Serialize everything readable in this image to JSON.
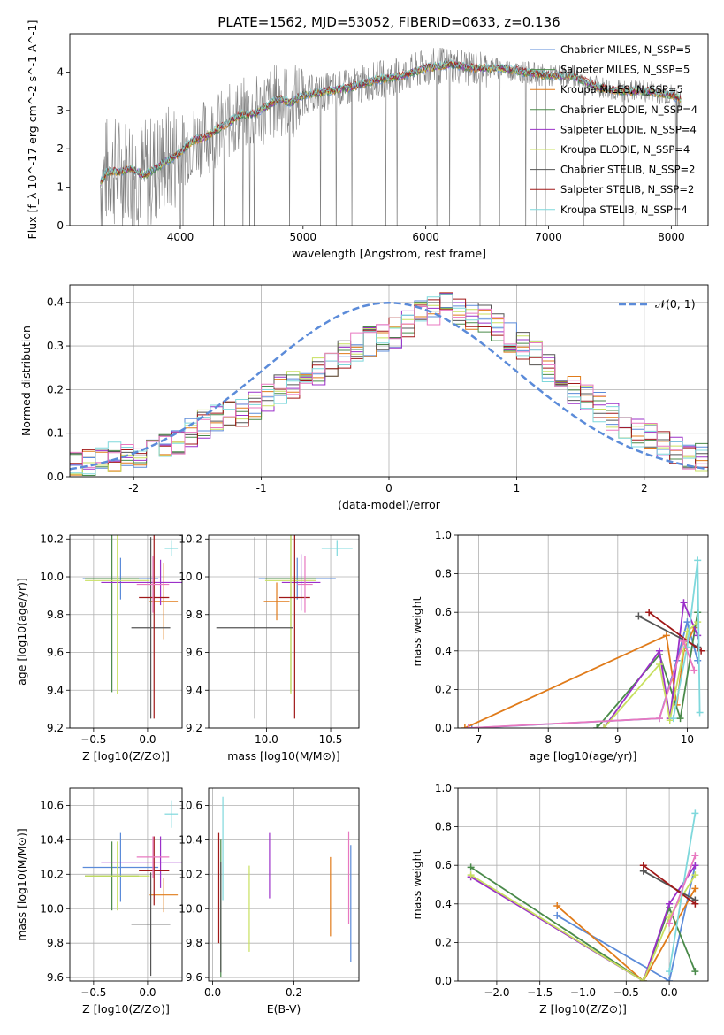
{
  "title": "PLATE=1562, MJD=53052, FIBERID=0633, z=0.136",
  "colors": {
    "gray": "#808080",
    "blue": "#5b8bd9",
    "orange": "#e07b1a",
    "green": "#4a8a4a",
    "purple": "#9b30c9",
    "lime": "#c8e060",
    "dark": "#555555",
    "red": "#a01818",
    "cyan": "#7fd8dc",
    "pink": "#e878c0"
  },
  "chart_data": [
    {
      "type": "line",
      "id": "spectrum",
      "xlabel": "wavelength [Angstrom, rest frame]",
      "ylabel": "Flux [f_λ 10^-17 erg cm^-2 s^-1 A^-1]",
      "xlim": [
        3100,
        8300
      ],
      "ylim": [
        0,
        5
      ],
      "xticks": [
        4000,
        5000,
        6000,
        7000,
        8000
      ],
      "yticks": [
        0,
        1,
        2,
        3,
        4
      ],
      "legend": [
        {
          "label": "Chabrier MILES, N_SSP=5",
          "color": "#5b8bd9"
        },
        {
          "label": "Salpeter MILES, N_SSP=5",
          "color": "#4a8a4a"
        },
        {
          "label": "Kroupa MILES, N_SSP=5",
          "color": "#e07b1a"
        },
        {
          "label": "Chabrier ELODIE, N_SSP=4",
          "color": "#4a8a4a"
        },
        {
          "label": "Salpeter ELODIE, N_SSP=4",
          "color": "#9b30c9"
        },
        {
          "label": "Kroupa ELODIE, N_SSP=4",
          "color": "#c8e060"
        },
        {
          "label": "Chabrier STELIB, N_SSP=2",
          "color": "#555555"
        },
        {
          "label": "Salpeter STELIB, N_SSP=2",
          "color": "#a01818"
        },
        {
          "label": "Kroupa STELIB, N_SSP=4",
          "color": "#7fd8dc"
        }
      ],
      "model_curve": {
        "x": [
          3350,
          3400,
          3500,
          3600,
          3700,
          3800,
          3900,
          4000,
          4100,
          4200,
          4300,
          4400,
          4500,
          4600,
          4700,
          4800,
          4900,
          5000,
          5200,
          5400,
          5600,
          5800,
          6000,
          6200,
          6400,
          6600,
          6800,
          7000,
          7200,
          7400,
          7600,
          7800,
          8000,
          8080
        ],
        "y": [
          1.1,
          1.4,
          1.4,
          1.5,
          1.3,
          1.5,
          1.7,
          1.9,
          2.2,
          2.3,
          2.5,
          2.7,
          2.9,
          2.9,
          3.1,
          3.3,
          3.2,
          3.4,
          3.5,
          3.6,
          3.8,
          3.9,
          4.1,
          4.2,
          4.1,
          4.1,
          4.0,
          3.9,
          3.9,
          3.6,
          3.5,
          3.5,
          3.4,
          3.3
        ]
      }
    },
    {
      "type": "histogram",
      "id": "residuals",
      "xlabel": "(data-model)/error",
      "ylabel": "Normed distribution",
      "xlim": [
        -2.5,
        2.5
      ],
      "ylim": [
        0,
        0.44
      ],
      "xticks": [
        -2,
        -1,
        0,
        1,
        2
      ],
      "yticks": [
        0.0,
        0.1,
        0.2,
        0.3,
        0.4
      ],
      "legend_label": "𝒩(0, 1)",
      "bin_width": 0.1,
      "bins_start": -2.5,
      "heights": [
        0.03,
        0.035,
        0.04,
        0.045,
        0.05,
        0.055,
        0.065,
        0.07,
        0.08,
        0.1,
        0.12,
        0.13,
        0.14,
        0.15,
        0.16,
        0.18,
        0.2,
        0.21,
        0.22,
        0.24,
        0.26,
        0.28,
        0.3,
        0.31,
        0.32,
        0.33,
        0.35,
        0.37,
        0.38,
        0.39,
        0.38,
        0.37,
        0.36,
        0.34,
        0.32,
        0.3,
        0.28,
        0.25,
        0.23,
        0.2,
        0.18,
        0.16,
        0.14,
        0.12,
        0.1,
        0.09,
        0.08,
        0.065,
        0.05,
        0.045
      ]
    },
    {
      "type": "scatter",
      "id": "age-vs-Z",
      "xlabel": "Z [log10(Z/Z⊙)]",
      "ylabel": "age [log10(age/yr)]",
      "xlim": [
        -0.72,
        0.32
      ],
      "ylim": [
        9.2,
        10.22
      ],
      "xticks": [
        -0.5,
        0.0
      ],
      "yticks": [
        9.2,
        9.4,
        9.6,
        9.8,
        10.0,
        10.2
      ],
      "points": [
        {
          "x": -0.25,
          "y": 9.99,
          "xerr": 0.35,
          "yerr": 0.11,
          "color": "#5b8bd9"
        },
        {
          "x": 0.15,
          "y": 9.87,
          "xerr": 0.13,
          "yerr": 0.2,
          "color": "#e07b1a"
        },
        {
          "x": -0.33,
          "y": 9.99,
          "xerr": 0.25,
          "yerr": 0.6,
          "color": "#4a8a4a"
        },
        {
          "x": 0.12,
          "y": 9.97,
          "xerr": 0.55,
          "yerr": 0.12,
          "color": "#9b30c9"
        },
        {
          "x": -0.28,
          "y": 9.98,
          "xerr": 0.3,
          "yerr": 0.6,
          "color": "#c8e060"
        },
        {
          "x": 0.03,
          "y": 9.73,
          "xerr": 0.18,
          "yerr": 0.48,
          "color": "#555555"
        },
        {
          "x": 0.06,
          "y": 9.89,
          "xerr": 0.14,
          "yerr": 0.64,
          "color": "#a01818"
        },
        {
          "x": 0.22,
          "y": 10.15,
          "xerr": 0.06,
          "yerr": 0.04,
          "color": "#7fd8dc"
        },
        {
          "x": 0.05,
          "y": 9.96,
          "xerr": 0.15,
          "yerr": 0.15,
          "color": "#e878c0"
        }
      ]
    },
    {
      "type": "scatter",
      "id": "age-vs-mass",
      "xlabel": "mass [log10(M/M⊙)]",
      "ylabel": "",
      "xlim": [
        9.55,
        10.72
      ],
      "ylim": [
        9.2,
        10.22
      ],
      "xticks": [
        10.0,
        10.5
      ],
      "yticks": [
        9.2,
        9.4,
        9.6,
        9.8,
        10.0,
        10.2
      ],
      "points": [
        {
          "x": 10.24,
          "y": 9.99,
          "xerr": 0.3,
          "yerr": 0.11,
          "color": "#5b8bd9"
        },
        {
          "x": 10.08,
          "y": 9.87,
          "xerr": 0.1,
          "yerr": 0.1,
          "color": "#e07b1a"
        },
        {
          "x": 10.19,
          "y": 9.99,
          "xerr": 0.2,
          "yerr": 0.6,
          "color": "#4a8a4a"
        },
        {
          "x": 10.27,
          "y": 9.97,
          "xerr": 0.15,
          "yerr": 0.15,
          "color": "#9b30c9"
        },
        {
          "x": 10.19,
          "y": 9.98,
          "xerr": 0.2,
          "yerr": 0.6,
          "color": "#c8e060"
        },
        {
          "x": 9.91,
          "y": 9.73,
          "xerr": 0.3,
          "yerr": 0.48,
          "color": "#555555"
        },
        {
          "x": 10.22,
          "y": 9.89,
          "xerr": 0.12,
          "yerr": 0.64,
          "color": "#a01818"
        },
        {
          "x": 10.55,
          "y": 10.15,
          "xerr": 0.12,
          "yerr": 0.04,
          "color": "#7fd8dc"
        },
        {
          "x": 10.3,
          "y": 9.96,
          "xerr": 0.06,
          "yerr": 0.15,
          "color": "#e878c0"
        }
      ]
    },
    {
      "type": "line",
      "id": "massweight-vs-age",
      "xlabel": "age [log10(age/yr)]",
      "ylabel": "mass weight",
      "xlim": [
        6.7,
        10.3
      ],
      "ylim": [
        0,
        1
      ],
      "xticks": [
        7,
        8,
        9,
        10
      ],
      "yticks": [
        0.0,
        0.2,
        0.4,
        0.6,
        0.8,
        1.0
      ],
      "series": [
        {
          "color": "#5b8bd9",
          "x": [
            6.9,
            9.6,
            9.85,
            10.0,
            10.15
          ],
          "y": [
            0.0,
            0.05,
            0.35,
            0.55,
            0.35
          ]
        },
        {
          "color": "#e07b1a",
          "x": [
            6.8,
            9.7,
            9.85,
            9.95,
            10.1
          ],
          "y": [
            0.0,
            0.48,
            0.12,
            0.4,
            0.52
          ]
        },
        {
          "color": "#4a8a4a",
          "x": [
            8.7,
            9.6,
            9.9,
            10.15
          ],
          "y": [
            0.0,
            0.38,
            0.05,
            0.6
          ]
        },
        {
          "color": "#9b30c9",
          "x": [
            8.8,
            9.6,
            9.75,
            9.95,
            10.15
          ],
          "y": [
            0.0,
            0.4,
            0.05,
            0.65,
            0.48
          ]
        },
        {
          "color": "#c8e060",
          "x": [
            8.8,
            9.6,
            9.75,
            10.0,
            10.15
          ],
          "y": [
            0.0,
            0.33,
            0.04,
            0.5,
            0.55
          ]
        },
        {
          "color": "#555555",
          "x": [
            9.3,
            10.15
          ],
          "y": [
            0.58,
            0.42
          ]
        },
        {
          "color": "#a01818",
          "x": [
            9.45,
            10.2
          ],
          "y": [
            0.6,
            0.4
          ]
        },
        {
          "color": "#7fd8dc",
          "x": [
            9.8,
            10.0,
            10.15,
            10.18
          ],
          "y": [
            0.05,
            0.42,
            0.87,
            0.08
          ]
        },
        {
          "color": "#e878c0",
          "x": [
            6.85,
            9.6,
            9.95,
            10.1
          ],
          "y": [
            0.0,
            0.05,
            0.45,
            0.3
          ]
        }
      ]
    },
    {
      "type": "scatter",
      "id": "mass-vs-Z",
      "xlabel": "Z [log10(Z/Z⊙)]",
      "ylabel": "mass [log10(M/M⊙)]",
      "xlim": [
        -0.72,
        0.32
      ],
      "ylim": [
        9.58,
        10.7
      ],
      "xticks": [
        -0.5,
        0.0
      ],
      "yticks": [
        9.6,
        9.8,
        10.0,
        10.2,
        10.4,
        10.6
      ],
      "points": [
        {
          "x": -0.25,
          "y": 10.24,
          "xerr": 0.35,
          "yerr": 0.2,
          "color": "#5b8bd9"
        },
        {
          "x": 0.15,
          "y": 10.08,
          "xerr": 0.13,
          "yerr": 0.1,
          "color": "#e07b1a"
        },
        {
          "x": -0.33,
          "y": 10.19,
          "xerr": 0.25,
          "yerr": 0.2,
          "color": "#4a8a4a"
        },
        {
          "x": 0.12,
          "y": 10.27,
          "xerr": 0.55,
          "yerr": 0.15,
          "color": "#9b30c9"
        },
        {
          "x": -0.28,
          "y": 10.19,
          "xerr": 0.3,
          "yerr": 0.2,
          "color": "#c8e060"
        },
        {
          "x": 0.03,
          "y": 9.91,
          "xerr": 0.18,
          "yerr": 0.3,
          "color": "#555555"
        },
        {
          "x": 0.06,
          "y": 10.22,
          "xerr": 0.14,
          "yerr": 0.2,
          "color": "#a01818"
        },
        {
          "x": 0.22,
          "y": 10.55,
          "xerr": 0.06,
          "yerr": 0.08,
          "color": "#7fd8dc"
        },
        {
          "x": 0.05,
          "y": 10.3,
          "xerr": 0.15,
          "yerr": 0.12,
          "color": "#e878c0"
        }
      ]
    },
    {
      "type": "scatter",
      "id": "mass-vs-EBV",
      "xlabel": "E(B-V)",
      "ylabel": "",
      "xlim": [
        -0.01,
        0.36
      ],
      "ylim": [
        9.58,
        10.7
      ],
      "xticks": [
        0.0,
        0.2
      ],
      "yticks": [
        9.6,
        9.8,
        10.0,
        10.2,
        10.4,
        10.6
      ],
      "points": [
        {
          "x": 0.34,
          "y": 10.03,
          "yerr": 0.34,
          "color": "#5b8bd9"
        },
        {
          "x": 0.29,
          "y": 10.07,
          "yerr": 0.23,
          "color": "#e07b1a"
        },
        {
          "x": 0.02,
          "y": 10.0,
          "yerr": 0.4,
          "color": "#4a8a4a"
        },
        {
          "x": 0.14,
          "y": 10.25,
          "yerr": 0.19,
          "color": "#9b30c9"
        },
        {
          "x": 0.09,
          "y": 10.0,
          "yerr": 0.25,
          "color": "#c8e060"
        },
        {
          "x": 0.02,
          "y": 9.95,
          "yerr": 0.32,
          "color": "#555555"
        },
        {
          "x": 0.015,
          "y": 10.12,
          "yerr": 0.32,
          "color": "#a01818"
        },
        {
          "x": 0.025,
          "y": 10.35,
          "yerr": 0.3,
          "color": "#7fd8dc"
        },
        {
          "x": 0.335,
          "y": 10.18,
          "yerr": 0.27,
          "color": "#e878c0"
        }
      ]
    },
    {
      "type": "line",
      "id": "massweight-vs-Z",
      "xlabel": "Z [log10(Z/Z⊙)]",
      "ylabel": "mass weight",
      "xlim": [
        -2.45,
        0.45
      ],
      "ylim": [
        0,
        1
      ],
      "xticks": [
        -2.0,
        -1.5,
        -1.0,
        -0.5,
        0.0
      ],
      "yticks": [
        0.0,
        0.2,
        0.4,
        0.6,
        0.8,
        1.0
      ],
      "series": [
        {
          "color": "#5b8bd9",
          "x": [
            -1.3,
            0.0,
            0.3
          ],
          "y": [
            0.34,
            0.0,
            0.6
          ]
        },
        {
          "color": "#e07b1a",
          "x": [
            -1.3,
            -0.3,
            0.3
          ],
          "y": [
            0.39,
            0.0,
            0.48
          ]
        },
        {
          "color": "#4a8a4a",
          "x": [
            -2.3,
            -0.3,
            0.0,
            0.3
          ],
          "y": [
            0.59,
            0.0,
            0.38,
            0.05
          ]
        },
        {
          "color": "#9b30c9",
          "x": [
            -2.3,
            -0.3,
            0.0,
            0.3
          ],
          "y": [
            0.54,
            0.0,
            0.4,
            0.6
          ]
        },
        {
          "color": "#c8e060",
          "x": [
            -2.3,
            -0.3,
            0.0,
            0.3
          ],
          "y": [
            0.55,
            0.0,
            0.33,
            0.55
          ]
        },
        {
          "color": "#555555",
          "x": [
            -0.3,
            0.3
          ],
          "y": [
            0.57,
            0.42
          ]
        },
        {
          "color": "#a01818",
          "x": [
            -0.3,
            0.3
          ],
          "y": [
            0.6,
            0.4
          ]
        },
        {
          "color": "#7fd8dc",
          "x": [
            0.0,
            0.3
          ],
          "y": [
            0.05,
            0.87
          ]
        },
        {
          "color": "#e878c0",
          "x": [
            0.0,
            0.3
          ],
          "y": [
            0.3,
            0.65
          ]
        }
      ]
    }
  ]
}
